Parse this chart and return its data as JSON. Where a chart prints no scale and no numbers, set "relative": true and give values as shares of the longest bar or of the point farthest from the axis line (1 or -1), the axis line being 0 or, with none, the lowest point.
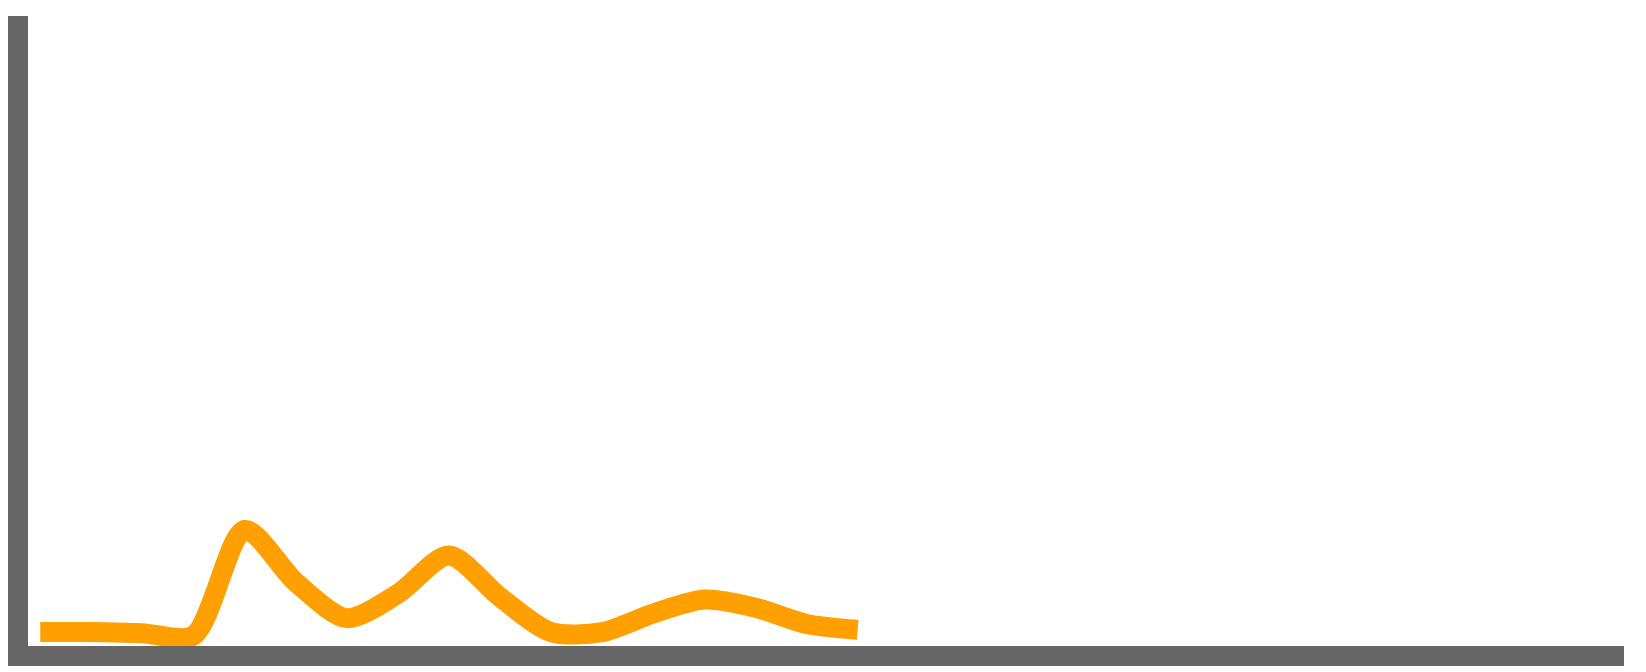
{
  "chart_data": {
    "type": "line",
    "relative": true,
    "color": "#ff9f00",
    "categories": [
      null,
      null,
      null,
      null,
      null,
      null,
      null,
      null,
      null,
      null,
      null,
      null,
      null,
      null,
      null,
      null,
      null,
      null,
      null,
      null,
      null,
      null,
      null,
      null,
      null,
      null,
      null,
      null,
      null,
      null,
      null,
      null
    ],
    "values": [
      0.12,
      0.12,
      0.11,
      0.09,
      1,
      0.55,
      0.24,
      0.45,
      0.78,
      0.42,
      0.12,
      0.12,
      0.28,
      0.4,
      0.33,
      0.19,
      0.14,
      null,
      null,
      null,
      null,
      null,
      null,
      null,
      null,
      null,
      null,
      null,
      null,
      null,
      null,
      null
    ]
  }
}
